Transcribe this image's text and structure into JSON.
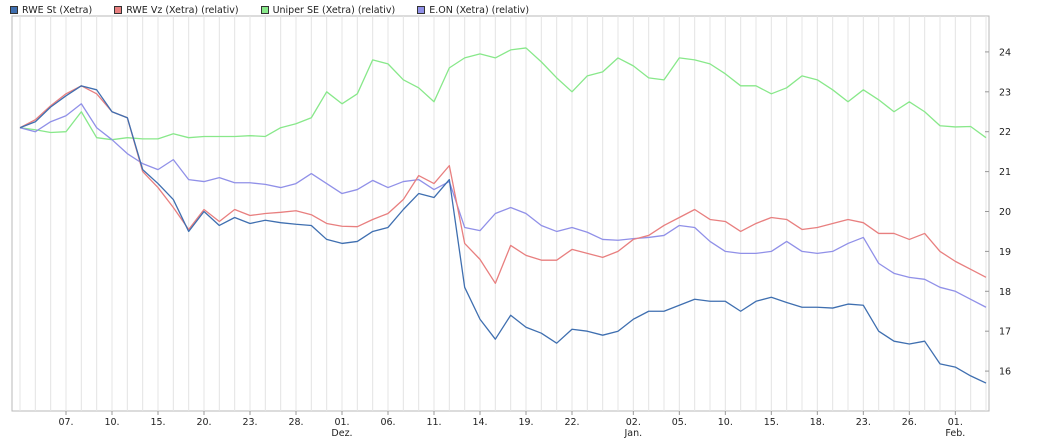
{
  "chart_data": {
    "type": "line",
    "title": "",
    "xlabel": "",
    "ylabel": "",
    "ylim": [
      15,
      24.9
    ],
    "yticks": [
      16,
      17,
      18,
      19,
      20,
      21,
      22,
      23,
      24
    ],
    "y_axis_position": "right",
    "grid": "vertical",
    "legend_position": "top-left",
    "x_ticks": [
      {
        "i": 3,
        "label": "07."
      },
      {
        "i": 6,
        "label": "10."
      },
      {
        "i": 9,
        "label": "15."
      },
      {
        "i": 12,
        "label": "20."
      },
      {
        "i": 15,
        "label": "23."
      },
      {
        "i": 18,
        "label": "28."
      },
      {
        "i": 21,
        "label": "01.",
        "month": "Dez."
      },
      {
        "i": 24,
        "label": "06."
      },
      {
        "i": 27,
        "label": "11."
      },
      {
        "i": 30,
        "label": "14."
      },
      {
        "i": 33,
        "label": "19."
      },
      {
        "i": 36,
        "label": "22."
      },
      {
        "i": 40,
        "label": "02.",
        "month": "Jan."
      },
      {
        "i": 43,
        "label": "05."
      },
      {
        "i": 46,
        "label": "10."
      },
      {
        "i": 49,
        "label": "15."
      },
      {
        "i": 52,
        "label": "18."
      },
      {
        "i": 55,
        "label": "23."
      },
      {
        "i": 58,
        "label": "26."
      },
      {
        "i": 61,
        "label": "01.",
        "month": "Feb."
      }
    ],
    "series": [
      {
        "name": "RWE St (Xetra)",
        "color": "#3f6fb0",
        "values": [
          22.1,
          22.25,
          22.62,
          22.9,
          23.15,
          23.05,
          22.5,
          22.35,
          21.05,
          20.7,
          20.3,
          19.5,
          20.0,
          19.65,
          19.85,
          19.7,
          19.78,
          19.72,
          19.68,
          19.65,
          19.3,
          19.2,
          19.25,
          19.5,
          19.6,
          20.05,
          20.45,
          20.35,
          20.8,
          18.1,
          17.3,
          16.8,
          17.4,
          17.1,
          16.95,
          16.7,
          17.05,
          17.0,
          16.9,
          17.0,
          17.3,
          17.5,
          17.5,
          17.65,
          17.8,
          17.75,
          17.75,
          17.5,
          17.75,
          17.85,
          17.72,
          17.6,
          17.6,
          17.58,
          17.68,
          17.65,
          17.0,
          16.75,
          16.68,
          16.75,
          16.18,
          16.1,
          15.88,
          15.7
        ]
      },
      {
        "name": "RWE Vz (Xetra) (relativ)",
        "color": "#e87f7f",
        "values": [
          22.1,
          22.3,
          22.65,
          22.95,
          23.15,
          22.95,
          22.5,
          22.35,
          21.0,
          20.6,
          20.1,
          19.55,
          20.05,
          19.75,
          20.05,
          19.9,
          19.95,
          19.98,
          20.02,
          19.92,
          19.7,
          19.63,
          19.62,
          19.8,
          19.95,
          20.3,
          20.9,
          20.7,
          21.15,
          19.2,
          18.8,
          18.2,
          19.15,
          18.9,
          18.78,
          18.78,
          19.05,
          18.95,
          18.85,
          19.0,
          19.3,
          19.4,
          19.65,
          19.85,
          20.05,
          19.8,
          19.75,
          19.5,
          19.7,
          19.85,
          19.8,
          19.55,
          19.6,
          19.7,
          19.8,
          19.72,
          19.45,
          19.45,
          19.3,
          19.45,
          19.0,
          18.75,
          18.55,
          18.35
        ]
      },
      {
        "name": "Uniper SE (Xetra) (relativ)",
        "color": "#88e88a",
        "values": [
          22.1,
          22.05,
          21.98,
          22.0,
          22.5,
          21.85,
          21.8,
          21.85,
          21.82,
          21.82,
          21.95,
          21.85,
          21.88,
          21.88,
          21.88,
          21.9,
          21.88,
          22.1,
          22.2,
          22.35,
          23.0,
          22.7,
          22.95,
          23.8,
          23.7,
          23.3,
          23.1,
          22.75,
          23.6,
          23.85,
          23.95,
          23.85,
          24.05,
          24.1,
          23.75,
          23.35,
          23.0,
          23.4,
          23.5,
          23.85,
          23.65,
          23.35,
          23.3,
          23.85,
          23.8,
          23.7,
          23.45,
          23.15,
          23.15,
          22.95,
          23.1,
          23.4,
          23.3,
          23.05,
          22.75,
          23.05,
          22.8,
          22.5,
          22.75,
          22.5,
          22.15,
          22.12,
          22.13,
          21.85
        ]
      },
      {
        "name": "E.ON (Xetra) (relativ)",
        "color": "#9090e8",
        "values": [
          22.1,
          22.0,
          22.25,
          22.4,
          22.7,
          22.1,
          21.8,
          21.45,
          21.2,
          21.05,
          21.3,
          20.8,
          20.75,
          20.85,
          20.72,
          20.72,
          20.68,
          20.6,
          20.7,
          20.95,
          20.7,
          20.45,
          20.55,
          20.78,
          20.6,
          20.75,
          20.8,
          20.55,
          20.75,
          19.6,
          19.52,
          19.95,
          20.1,
          19.95,
          19.65,
          19.5,
          19.6,
          19.48,
          19.3,
          19.28,
          19.32,
          19.35,
          19.4,
          19.65,
          19.6,
          19.25,
          19.0,
          18.95,
          18.95,
          19.0,
          19.25,
          19.0,
          18.95,
          19.0,
          19.2,
          19.35,
          18.7,
          18.45,
          18.35,
          18.3,
          18.1,
          18.0,
          17.8,
          17.6
        ]
      }
    ]
  }
}
